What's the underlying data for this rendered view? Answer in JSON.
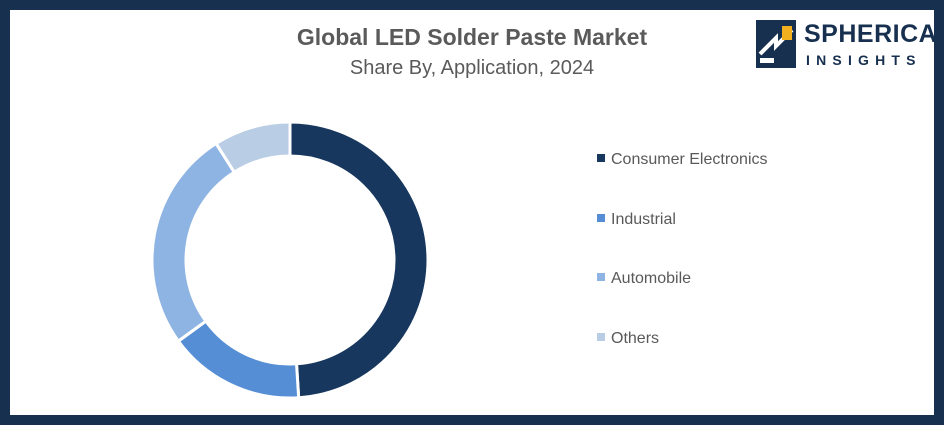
{
  "header": {
    "title": "Global LED Solder Paste Market",
    "subtitle": "Share By, Application, 2024"
  },
  "logo": {
    "name": "SPHERICAL",
    "tagline": "INSIGHTS",
    "colors": {
      "navy": "#17304f",
      "gold": "#f2b01e"
    }
  },
  "chart_data": {
    "type": "pie",
    "style": "donut",
    "title": "Global LED Solder Paste Market",
    "subtitle": "Share By, Application, 2024",
    "legend_position": "right",
    "categories": [
      "Consumer Electronics",
      "Industrial",
      "Automobile",
      "Others"
    ],
    "values": [
      49,
      16,
      26,
      9
    ],
    "colors": [
      "#17375e",
      "#558ed5",
      "#8eb4e3",
      "#b9cde5"
    ]
  }
}
